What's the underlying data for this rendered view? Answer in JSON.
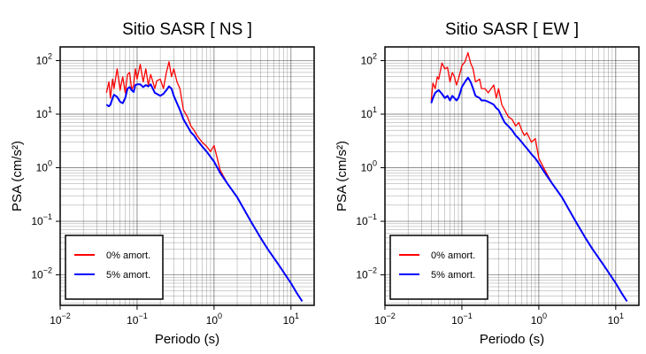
{
  "chart_data": [
    {
      "type": "line",
      "title": "Sitio SASR [ NS ]",
      "xlabel": "Periodo (s)",
      "ylabel": "PSA (cm/s²)",
      "xscale": "log",
      "yscale": "log",
      "xlim": [
        0.01,
        20
      ],
      "ylim": [
        0.0027,
        180
      ],
      "grid": true,
      "legend_position": "bottom-left",
      "x_ticks": [
        {
          "base": "10",
          "exp": "−2"
        },
        {
          "base": "10",
          "exp": "−1"
        },
        {
          "base": "10",
          "exp": "0"
        },
        {
          "base": "10",
          "exp": "1"
        }
      ],
      "y_ticks": [
        {
          "base": "10",
          "exp": "−2"
        },
        {
          "base": "10",
          "exp": "−1"
        },
        {
          "base": "10",
          "exp": "0"
        },
        {
          "base": "10",
          "exp": "1"
        },
        {
          "base": "10",
          "exp": "2"
        }
      ],
      "series": [
        {
          "name": "0% amort.",
          "color": "#ff0000",
          "x": [
            0.04,
            0.043,
            0.045,
            0.048,
            0.05,
            0.055,
            0.06,
            0.065,
            0.07,
            0.075,
            0.08,
            0.085,
            0.09,
            0.095,
            0.1,
            0.11,
            0.12,
            0.13,
            0.14,
            0.15,
            0.17,
            0.18,
            0.2,
            0.22,
            0.24,
            0.26,
            0.28,
            0.3,
            0.33,
            0.36,
            0.4,
            0.45,
            0.5,
            0.55,
            0.6,
            0.7,
            0.8,
            0.9,
            1.0,
            1.2,
            1.5,
            2,
            3,
            4,
            5,
            7,
            10,
            12,
            14
          ],
          "y": [
            25,
            40,
            20,
            45,
            30,
            70,
            28,
            50,
            25,
            55,
            60,
            28,
            35,
            70,
            45,
            85,
            40,
            70,
            35,
            55,
            30,
            42,
            45,
            30,
            60,
            95,
            50,
            70,
            40,
            30,
            12,
            9,
            6,
            5,
            4,
            3,
            2.5,
            2.0,
            2.6,
            0.9,
            0.5,
            0.28,
            0.1,
            0.05,
            0.03,
            0.015,
            0.007,
            0.0045,
            0.0032
          ]
        },
        {
          "name": "5% amort.",
          "color": "#0000ff",
          "x": [
            0.04,
            0.043,
            0.045,
            0.048,
            0.05,
            0.055,
            0.06,
            0.065,
            0.07,
            0.075,
            0.08,
            0.085,
            0.09,
            0.095,
            0.1,
            0.11,
            0.12,
            0.13,
            0.14,
            0.15,
            0.17,
            0.18,
            0.2,
            0.22,
            0.24,
            0.26,
            0.28,
            0.3,
            0.33,
            0.36,
            0.4,
            0.45,
            0.5,
            0.55,
            0.6,
            0.7,
            0.8,
            0.9,
            1.0,
            1.2,
            1.5,
            2,
            3,
            4,
            5,
            7,
            10,
            12,
            14
          ],
          "y": [
            15,
            14,
            15,
            20,
            23,
            21,
            17,
            16,
            20,
            30,
            32,
            28,
            26,
            35,
            36,
            36,
            32,
            35,
            33,
            36,
            25,
            24,
            22,
            24,
            28,
            33,
            30,
            22,
            16,
            12,
            8,
            6,
            4.6,
            4,
            3.3,
            2.5,
            2.0,
            1.6,
            1.3,
            0.8,
            0.5,
            0.28,
            0.1,
            0.05,
            0.03,
            0.015,
            0.007,
            0.0045,
            0.0032
          ]
        }
      ]
    },
    {
      "type": "line",
      "title": "Sitio SASR [ EW ]",
      "xlabel": "Periodo (s)",
      "ylabel": "PSA (cm/s²)",
      "xscale": "log",
      "yscale": "log",
      "xlim": [
        0.01,
        20
      ],
      "ylim": [
        0.0027,
        180
      ],
      "grid": true,
      "legend_position": "bottom-left",
      "x_ticks": [
        {
          "base": "10",
          "exp": "−2"
        },
        {
          "base": "10",
          "exp": "−1"
        },
        {
          "base": "10",
          "exp": "0"
        },
        {
          "base": "10",
          "exp": "1"
        }
      ],
      "y_ticks": [
        {
          "base": "10",
          "exp": "−2"
        },
        {
          "base": "10",
          "exp": "−1"
        },
        {
          "base": "10",
          "exp": "0"
        },
        {
          "base": "10",
          "exp": "1"
        },
        {
          "base": "10",
          "exp": "2"
        }
      ],
      "series": [
        {
          "name": "0% amort.",
          "color": "#ff0000",
          "x": [
            0.04,
            0.042,
            0.045,
            0.048,
            0.05,
            0.055,
            0.06,
            0.065,
            0.07,
            0.075,
            0.08,
            0.085,
            0.09,
            0.095,
            0.1,
            0.11,
            0.12,
            0.13,
            0.14,
            0.15,
            0.17,
            0.18,
            0.2,
            0.22,
            0.24,
            0.26,
            0.28,
            0.3,
            0.33,
            0.36,
            0.4,
            0.45,
            0.5,
            0.55,
            0.6,
            0.65,
            0.7,
            0.8,
            0.9,
            1.0,
            1.2,
            1.5,
            2,
            3,
            4,
            5,
            7,
            10,
            12,
            14
          ],
          "y": [
            18,
            38,
            30,
            50,
            45,
            90,
            70,
            75,
            40,
            60,
            50,
            35,
            45,
            60,
            80,
            95,
            140,
            90,
            70,
            40,
            45,
            30,
            30,
            25,
            30,
            35,
            20,
            30,
            15,
            12,
            9,
            8,
            6,
            7,
            5,
            4,
            4.5,
            3,
            3.5,
            1.5,
            0.9,
            0.5,
            0.28,
            0.1,
            0.05,
            0.03,
            0.015,
            0.007,
            0.0045,
            0.0032
          ]
        },
        {
          "name": "5% amort.",
          "color": "#0000ff",
          "x": [
            0.04,
            0.042,
            0.045,
            0.048,
            0.05,
            0.055,
            0.06,
            0.065,
            0.07,
            0.075,
            0.08,
            0.085,
            0.09,
            0.095,
            0.1,
            0.11,
            0.12,
            0.13,
            0.14,
            0.15,
            0.17,
            0.18,
            0.2,
            0.22,
            0.24,
            0.26,
            0.28,
            0.3,
            0.33,
            0.36,
            0.4,
            0.45,
            0.5,
            0.55,
            0.6,
            0.65,
            0.7,
            0.8,
            0.9,
            1.0,
            1.2,
            1.5,
            2,
            3,
            4,
            5,
            7,
            10,
            12,
            14
          ],
          "y": [
            16,
            20,
            25,
            27,
            28,
            24,
            20,
            22,
            18,
            22,
            20,
            18,
            20,
            25,
            32,
            40,
            48,
            40,
            30,
            22,
            20,
            18,
            18,
            17,
            16,
            15,
            13,
            12,
            9,
            7,
            6,
            5,
            4,
            3.5,
            3,
            2.6,
            2.3,
            1.8,
            1.5,
            1.2,
            0.8,
            0.5,
            0.28,
            0.1,
            0.05,
            0.03,
            0.015,
            0.007,
            0.0045,
            0.0032
          ]
        }
      ]
    }
  ]
}
